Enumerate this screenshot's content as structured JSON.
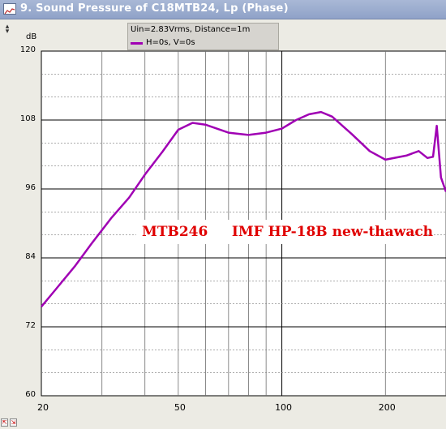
{
  "window": {
    "title": "9. Sound Pressure of C18MTB24, Lp (Phase)"
  },
  "legend": {
    "line1": "Uin=2.83Vrms, Distance=1m",
    "line2": "H=0s, V=0s",
    "series_color": "#a000b4"
  },
  "annotation": {
    "text": "MTB246     IMF HP-18B new-thawach",
    "color": "#e00000"
  },
  "chart_data": {
    "type": "line",
    "ylabel": "dB",
    "xscale": "log",
    "xlim": [
      20,
      300
    ],
    "ylim": [
      60,
      120
    ],
    "yticks": [
      "120",
      "108",
      "96",
      "84",
      "72",
      "60"
    ],
    "xticks": [
      "20",
      "50",
      "100",
      "200"
    ],
    "grid": true,
    "series": [
      {
        "color": "#a000b4",
        "x": [
          20,
          22,
          25,
          28,
          32,
          36,
          40,
          45,
          50,
          55,
          60,
          70,
          80,
          90,
          100,
          110,
          120,
          130,
          140,
          160,
          180,
          200,
          230,
          250,
          265,
          275,
          282,
          290,
          300
        ],
        "y": [
          75.5,
          78.5,
          82.5,
          86.5,
          91.0,
          94.5,
          98.5,
          102.5,
          106.3,
          107.5,
          107.2,
          105.8,
          105.4,
          105.8,
          106.5,
          108.0,
          109.0,
          109.4,
          108.6,
          105.5,
          102.6,
          101.1,
          101.8,
          102.6,
          101.4,
          101.6,
          107.0,
          98.0,
          95.5
        ]
      }
    ]
  }
}
